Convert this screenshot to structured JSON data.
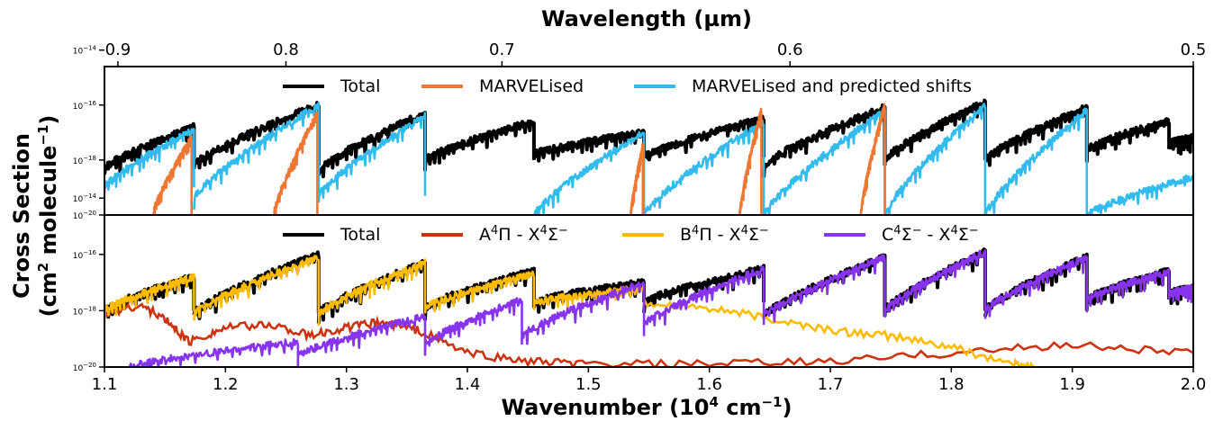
{
  "chart_data": {
    "type": "line",
    "x_axis": {
      "label_main": "Wavenumber (10",
      "label_sup": "4",
      "label_tail": " cm",
      "label_sup2": "−1",
      "label_end": ")",
      "range": [
        1.1,
        2.0
      ],
      "ticks": [
        "1.1",
        "1.2",
        "1.3",
        "1.4",
        "1.5",
        "1.6",
        "1.7",
        "1.8",
        "1.9",
        "2.0"
      ]
    },
    "top_axis": {
      "label": "Wavelength (µm)",
      "ticks": [
        {
          "wavelength": 0.9,
          "label": "0.9"
        },
        {
          "wavelength": 0.8,
          "label": "0.8"
        },
        {
          "wavelength": 0.7,
          "label": "0.7"
        },
        {
          "wavelength": 0.6,
          "label": "0.6"
        },
        {
          "wavelength": 0.5,
          "label": "0.5"
        }
      ]
    },
    "y_axis": {
      "label_line1": "Cross Section",
      "label_line2_main": "(cm",
      "label_line2_sup": "2",
      "label_line2_mid": " molecule",
      "label_line2_sup2": "−1",
      "label_line2_end": ")",
      "scale": "log",
      "range_exp": [
        -20,
        -14.6
      ],
      "ticks": [
        {
          "base": "10",
          "exp": "−14",
          "value_exp": -14
        },
        {
          "base": "10",
          "exp": "−16",
          "value_exp": -16
        },
        {
          "base": "10",
          "exp": "−18",
          "value_exp": -18
        },
        {
          "base": "10",
          "exp": "−20",
          "value_exp": -20
        }
      ]
    },
    "panels": [
      {
        "legend": [
          {
            "label": "Total",
            "color": "#000000"
          },
          {
            "label": "MARVELised",
            "color": "#ee7733"
          },
          {
            "label": "MARVELised and predicted shifts",
            "color": "#33bbee"
          }
        ],
        "series": [
          {
            "name": "Total",
            "color": "#000000",
            "bands": [
              {
                "x0": 1.1,
                "x1": 1.174,
                "y0": -18.3,
                "y1": -16.8
              },
              {
                "x0": 1.174,
                "x1": 1.277,
                "y0": -18.2,
                "y1": -16.0
              },
              {
                "x0": 1.277,
                "x1": 1.365,
                "y0": -18.4,
                "y1": -16.3
              },
              {
                "x0": 1.365,
                "x1": 1.455,
                "y0": -18.0,
                "y1": -16.6
              },
              {
                "x0": 1.455,
                "x1": 1.546,
                "y0": -17.8,
                "y1": -17.0
              },
              {
                "x0": 1.546,
                "x1": 1.645,
                "y0": -17.9,
                "y1": -16.5
              },
              {
                "x0": 1.645,
                "x1": 1.745,
                "y0": -18.2,
                "y1": -16.1
              },
              {
                "x0": 1.745,
                "x1": 1.828,
                "y0": -18.0,
                "y1": -15.9
              },
              {
                "x0": 1.828,
                "x1": 1.912,
                "y0": -18.0,
                "y1": -16.1
              },
              {
                "x0": 1.912,
                "x1": 1.98,
                "y0": -17.6,
                "y1": -16.6
              },
              {
                "x0": 1.98,
                "x1": 2.0,
                "y0": -17.4,
                "y1": -17.2
              }
            ]
          },
          {
            "name": "MARVELised and predicted shifts",
            "color": "#33bbee",
            "bands": [
              {
                "x0": 1.1,
                "x1": 1.174,
                "y0": -19.0,
                "y1": -16.9
              },
              {
                "x0": 1.174,
                "x1": 1.277,
                "y0": -19.4,
                "y1": -16.0
              },
              {
                "x0": 1.277,
                "x1": 1.365,
                "y0": -19.3,
                "y1": -16.4
              },
              {
                "x0": 1.455,
                "x1": 1.546,
                "y0": -20.0,
                "y1": -17.0
              },
              {
                "x0": 1.546,
                "x1": 1.645,
                "y0": -20.0,
                "y1": -16.6
              },
              {
                "x0": 1.645,
                "x1": 1.745,
                "y0": -20.0,
                "y1": -16.2
              },
              {
                "x0": 1.745,
                "x1": 1.828,
                "y0": -20.0,
                "y1": -16.0
              },
              {
                "x0": 1.828,
                "x1": 1.912,
                "y0": -20.0,
                "y1": -16.2
              },
              {
                "x0": 1.912,
                "x1": 2.0,
                "y0": -20.0,
                "y1": -18.6
              }
            ]
          },
          {
            "name": "MARVELised",
            "color": "#ee7733",
            "bands": [
              {
                "x0": 1.14,
                "x1": 1.172,
                "y0": -20.0,
                "y1": -17.2
              },
              {
                "x0": 1.24,
                "x1": 1.276,
                "y0": -20.0,
                "y1": -16.3
              },
              {
                "x0": 1.535,
                "x1": 1.545,
                "y0": -20.0,
                "y1": -17.5
              },
              {
                "x0": 1.625,
                "x1": 1.643,
                "y0": -20.0,
                "y1": -16.2
              },
              {
                "x0": 1.725,
                "x1": 1.745,
                "y0": -20.0,
                "y1": -16.0
              }
            ]
          }
        ]
      },
      {
        "legend": [
          {
            "label": "Total",
            "color": "#000000",
            "sup_parts": []
          },
          {
            "label": "A",
            "color": "#cc3311",
            "sup_parts": [
              "A",
              "4",
              "Π - X",
              "4",
              "Σ",
              "−"
            ]
          },
          {
            "label": "B",
            "color": "#ffbb00",
            "sup_parts": [
              "B",
              "4",
              "Π - X",
              "4",
              "Σ",
              "−"
            ]
          },
          {
            "label": "C",
            "color": "#8833ee",
            "sup_parts": [
              "C",
              "4",
              "Σ",
              "−",
              " - X",
              "4",
              "Σ",
              "−"
            ]
          }
        ],
        "series": [
          {
            "name": "Total",
            "color": "#000000",
            "bands": [
              {
                "x0": 1.1,
                "x1": 1.174,
                "y0": -18.0,
                "y1": -16.8
              },
              {
                "x0": 1.174,
                "x1": 1.277,
                "y0": -18.1,
                "y1": -16.0
              },
              {
                "x0": 1.277,
                "x1": 1.365,
                "y0": -18.1,
                "y1": -16.3
              },
              {
                "x0": 1.365,
                "x1": 1.455,
                "y0": -17.9,
                "y1": -16.6
              },
              {
                "x0": 1.455,
                "x1": 1.546,
                "y0": -17.7,
                "y1": -17.0
              },
              {
                "x0": 1.546,
                "x1": 1.645,
                "y0": -17.7,
                "y1": -16.5
              },
              {
                "x0": 1.645,
                "x1": 1.745,
                "y0": -18.2,
                "y1": -16.1
              },
              {
                "x0": 1.745,
                "x1": 1.828,
                "y0": -18.0,
                "y1": -15.9
              },
              {
                "x0": 1.828,
                "x1": 1.912,
                "y0": -18.0,
                "y1": -16.1
              },
              {
                "x0": 1.912,
                "x1": 1.98,
                "y0": -17.6,
                "y1": -16.6
              },
              {
                "x0": 1.98,
                "x1": 2.0,
                "y0": -17.4,
                "y1": -17.2
              }
            ]
          },
          {
            "name": "A",
            "color": "#cc3311",
            "points": [
              [
                1.1,
                -18.1
              ],
              [
                1.13,
                -17.8
              ],
              [
                1.15,
                -18.3
              ],
              [
                1.17,
                -19.1
              ],
              [
                1.2,
                -18.6
              ],
              [
                1.24,
                -18.5
              ],
              [
                1.27,
                -18.9
              ],
              [
                1.3,
                -18.6
              ],
              [
                1.33,
                -18.4
              ],
              [
                1.36,
                -18.7
              ],
              [
                1.4,
                -19.5
              ],
              [
                1.45,
                -19.8
              ],
              [
                1.5,
                -19.9
              ],
              [
                1.6,
                -19.9
              ],
              [
                1.7,
                -19.8
              ],
              [
                1.8,
                -19.5
              ],
              [
                1.9,
                -19.2
              ],
              [
                2.0,
                -19.5
              ]
            ]
          },
          {
            "name": "B",
            "color": "#ffbb00",
            "bands": [
              {
                "x0": 1.1,
                "x1": 1.174,
                "y0": -18.0,
                "y1": -16.8
              },
              {
                "x0": 1.174,
                "x1": 1.277,
                "y0": -18.1,
                "y1": -16.1
              },
              {
                "x0": 1.277,
                "x1": 1.365,
                "y0": -18.1,
                "y1": -16.3
              },
              {
                "x0": 1.365,
                "x1": 1.455,
                "y0": -17.9,
                "y1": -16.7
              },
              {
                "x0": 1.455,
                "x1": 1.546,
                "y0": -17.7,
                "y1": -17.2
              }
            ],
            "points": [
              [
                1.546,
                -17.7
              ],
              [
                1.6,
                -17.9
              ],
              [
                1.65,
                -18.3
              ],
              [
                1.7,
                -18.7
              ],
              [
                1.75,
                -18.9
              ],
              [
                1.8,
                -19.3
              ],
              [
                1.85,
                -19.9
              ],
              [
                1.87,
                -20.0
              ]
            ]
          },
          {
            "name": "C",
            "color": "#8833ee",
            "bands": [
              {
                "x0": 1.12,
                "x1": 1.26,
                "y0": -20.0,
                "y1": -19.1
              },
              {
                "x0": 1.26,
                "x1": 1.365,
                "y0": -19.6,
                "y1": -18.2
              },
              {
                "x0": 1.365,
                "x1": 1.445,
                "y0": -19.2,
                "y1": -17.6
              },
              {
                "x0": 1.445,
                "x1": 1.546,
                "y0": -18.9,
                "y1": -17.0
              },
              {
                "x0": 1.546,
                "x1": 1.645,
                "y0": -18.5,
                "y1": -16.5
              },
              {
                "x0": 1.645,
                "x1": 1.745,
                "y0": -18.2,
                "y1": -16.1
              },
              {
                "x0": 1.745,
                "x1": 1.828,
                "y0": -18.0,
                "y1": -15.9
              },
              {
                "x0": 1.828,
                "x1": 1.912,
                "y0": -18.0,
                "y1": -16.1
              },
              {
                "x0": 1.912,
                "x1": 1.98,
                "y0": -17.6,
                "y1": -16.6
              },
              {
                "x0": 1.98,
                "x1": 2.0,
                "y0": -17.4,
                "y1": -17.2
              }
            ]
          }
        ]
      }
    ]
  }
}
